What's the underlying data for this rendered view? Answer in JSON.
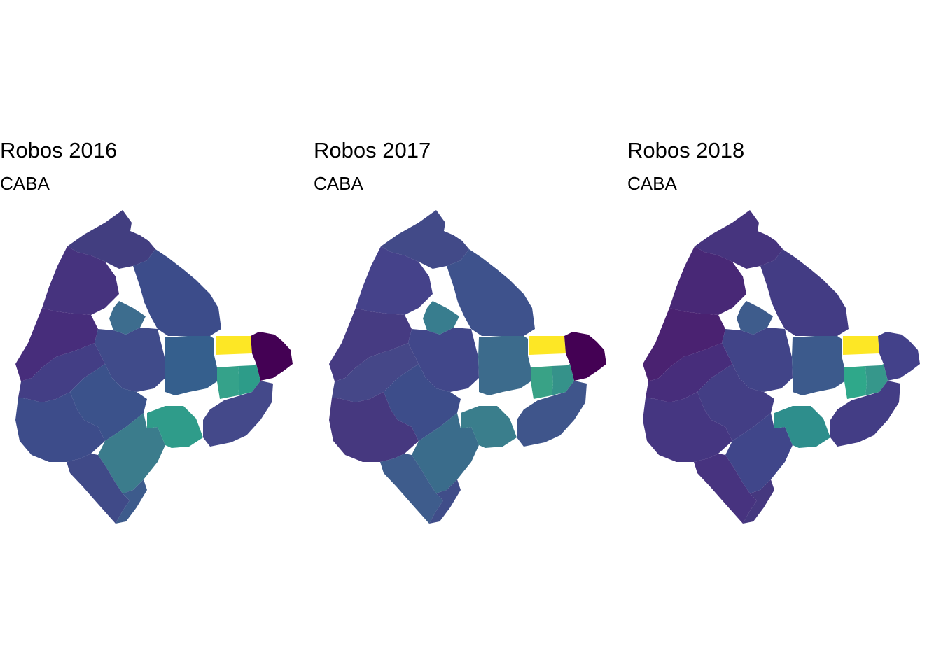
{
  "maps": [
    {
      "title": "Robos 2016",
      "subtitle": "CABA",
      "fills": {
        "north_strip": "#423e80",
        "nw_block": "#46337e",
        "north_mid": "#3c4c8a",
        "west_upper": "#472d7b",
        "west_lower": "#433e85",
        "center_tile": "#3d6d8e",
        "center_block": "#404b8a",
        "center_south": "#3b528b",
        "east_mid": "#355f8d",
        "yellow_cell": "#fde725",
        "east_dark": "#440154",
        "teal_cell": "#35a28a",
        "teal_right": "#2d9c89",
        "south_teal": "#2f9c8a",
        "south_mid": "#3b7c8c",
        "southwest": "#3d4c8a",
        "southwest_tip": "#404a88",
        "south_strip": "#3d5b8c",
        "se_block": "#44498a"
      }
    },
    {
      "title": "Robos 2017",
      "subtitle": "CABA",
      "fills": {
        "north_strip": "#424a88",
        "nw_block": "#45428a",
        "north_mid": "#3e528c",
        "west_upper": "#463b82",
        "west_lower": "#454788",
        "center_tile": "#387d8e",
        "center_block": "#41478a",
        "center_south": "#3d4d8a",
        "east_mid": "#3c6b8c",
        "yellow_cell": "#fde725",
        "east_dark": "#440154",
        "teal_cell": "#39a286",
        "teal_right": "#35928a",
        "south_teal": "#3a7e8c",
        "south_mid": "#3a6c8b",
        "southwest": "#46387f",
        "southwest_tip": "#3e5c8c",
        "south_strip": "#404d89",
        "se_block": "#3f558b"
      }
    },
    {
      "title": "Robos 2018",
      "subtitle": "CABA",
      "fills": {
        "north_strip": "#46347e",
        "nw_block": "#482876",
        "north_mid": "#433c84",
        "west_upper": "#4a2271",
        "west_lower": "#472d7b",
        "center_tile": "#3e5c8c",
        "center_block": "#414488",
        "center_south": "#433e85",
        "east_mid": "#3c5a8c",
        "yellow_cell": "#fde725",
        "east_dark": "#43418a",
        "teal_cell": "#2fa88a",
        "teal_right": "#36978b",
        "south_teal": "#2e8e8c",
        "south_mid": "#40468a",
        "southwest": "#453681",
        "southwest_tip": "#47337f",
        "south_strip": "#45387f",
        "se_block": "#433d85"
      }
    }
  ]
}
